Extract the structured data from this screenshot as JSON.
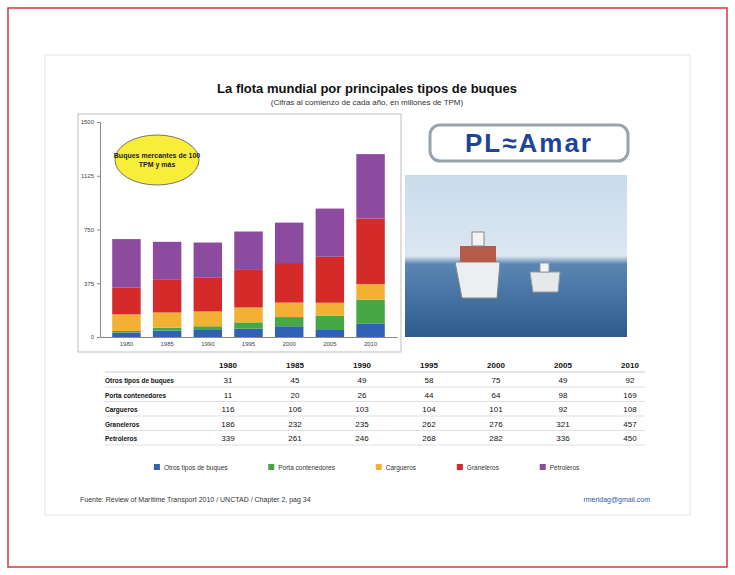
{
  "chart_data": {
    "type": "bar",
    "stacked": true,
    "title": "La flota mundial por principales tipos de buques",
    "subtitle": "(Cifras al comienzo de cada año, en millones de TPM)",
    "annotation": "Buques mercantes de 100 TPM y más",
    "logo": "PL≈Amar",
    "source": "Fuente: Review of Maritime Transport 2010 / UNCTAD / Chapter 2, pag 34",
    "contact": "rmeridag@gmail.com",
    "categories": [
      "1980",
      "1985",
      "1990",
      "1995",
      "2000",
      "2005",
      "2010"
    ],
    "series": [
      {
        "name": "Otros tipos de buques",
        "color": "#2f62b5",
        "values": [
          31,
          45,
          49,
          58,
          75,
          49,
          92
        ]
      },
      {
        "name": "Porta contenedores",
        "color": "#45a845",
        "values": [
          11,
          20,
          26,
          44,
          64,
          98,
          169
        ]
      },
      {
        "name": "Cargueros",
        "color": "#f2b135",
        "values": [
          116,
          106,
          103,
          104,
          101,
          92,
          108
        ]
      },
      {
        "name": "Graneleros",
        "color": "#d42a2a",
        "values": [
          186,
          232,
          235,
          262,
          276,
          321,
          457
        ]
      },
      {
        "name": "Petroleros",
        "color": "#8c4b9e",
        "values": [
          339,
          261,
          246,
          268,
          282,
          336,
          450
        ]
      }
    ],
    "ylim": [
      0,
      1500
    ],
    "yticks": [
      0,
      375,
      750,
      1125,
      1500
    ],
    "legend": "bottom"
  }
}
